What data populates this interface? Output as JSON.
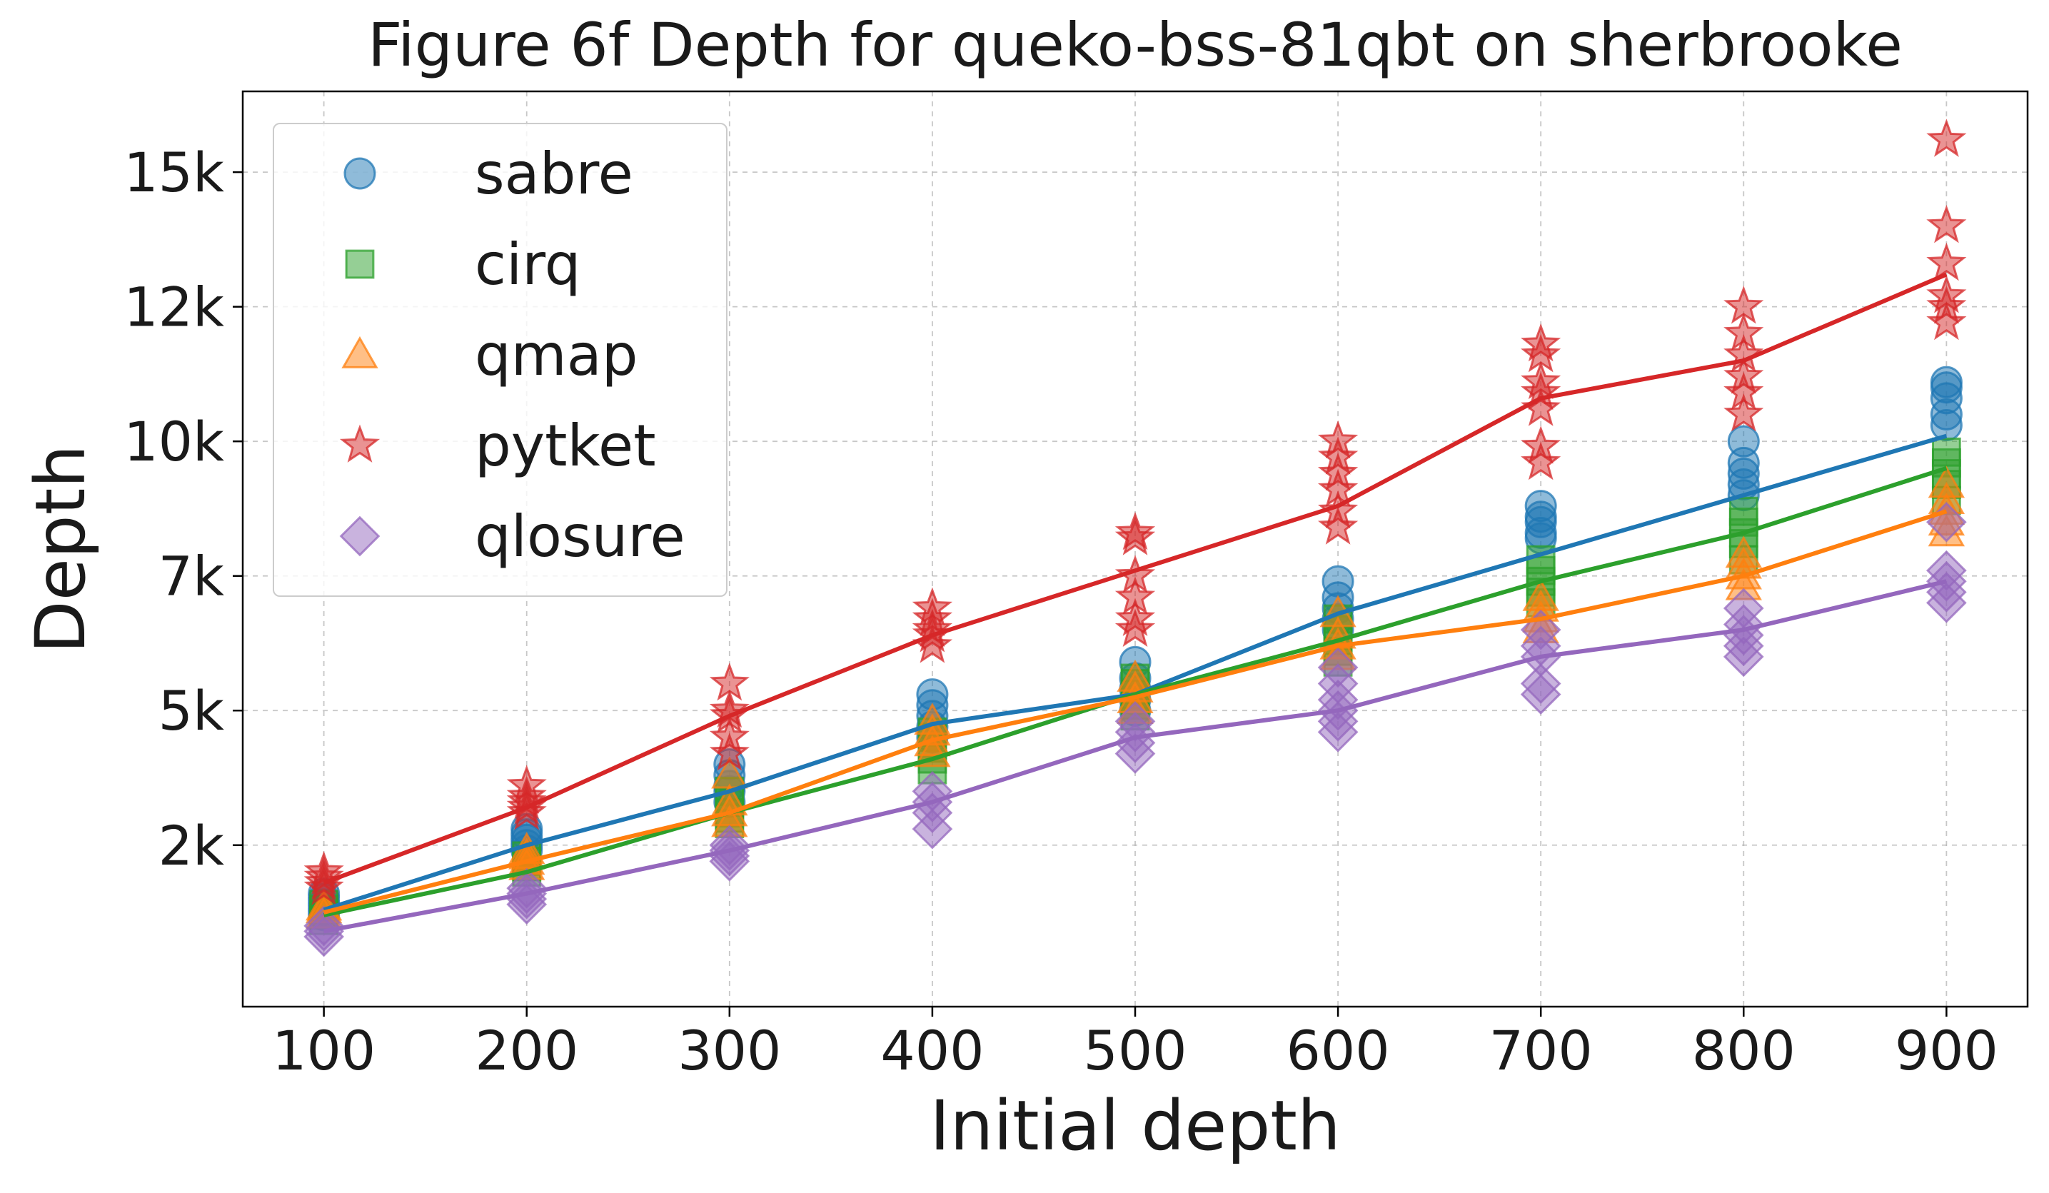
{
  "chart_data": {
    "type": "scatter",
    "title": "Figure 6f Depth for queko-bss-81qbt on sherbrooke",
    "xlabel": "Initial depth",
    "ylabel": "Depth",
    "xlim": [
      60,
      940
    ],
    "ylim": [
      -1000,
      16000
    ],
    "x_ticks": [
      100,
      200,
      300,
      400,
      500,
      600,
      700,
      800,
      900
    ],
    "x_tick_labels": [
      "100",
      "200",
      "300",
      "400",
      "500",
      "600",
      "700",
      "800",
      "900"
    ],
    "y_ticks": [
      2000,
      4500,
      7000,
      9500,
      12000,
      14500
    ],
    "y_tick_labels": [
      "2k",
      "5k",
      "7k",
      "10k",
      "12k",
      "15k"
    ],
    "grid": true,
    "legend_position": "top-left",
    "series": [
      {
        "name": "sabre",
        "color": "#1f77b4",
        "marker": "circle",
        "mean": [
          800,
          2000,
          3000,
          4250,
          4800,
          6300,
          7400,
          8500,
          9600
        ],
        "points": [
          [
            100,
            700
          ],
          [
            100,
            800
          ],
          [
            100,
            900
          ],
          [
            100,
            1000
          ],
          [
            100,
            1100
          ],
          [
            200,
            1900
          ],
          [
            200,
            2000
          ],
          [
            200,
            2100
          ],
          [
            200,
            2200
          ],
          [
            200,
            2300
          ],
          [
            300,
            2800
          ],
          [
            300,
            3000
          ],
          [
            300,
            3100
          ],
          [
            300,
            3300
          ],
          [
            300,
            3500
          ],
          [
            400,
            4000
          ],
          [
            400,
            4200
          ],
          [
            400,
            4400
          ],
          [
            400,
            4600
          ],
          [
            400,
            4800
          ],
          [
            500,
            4500
          ],
          [
            500,
            4700
          ],
          [
            500,
            4900
          ],
          [
            500,
            5100
          ],
          [
            500,
            5400
          ],
          [
            600,
            6000
          ],
          [
            600,
            6200
          ],
          [
            600,
            6400
          ],
          [
            600,
            6600
          ],
          [
            600,
            6900
          ],
          [
            700,
            7700
          ],
          [
            700,
            7800
          ],
          [
            700,
            8000
          ],
          [
            700,
            8100
          ],
          [
            700,
            8300
          ],
          [
            800,
            8500
          ],
          [
            800,
            8700
          ],
          [
            800,
            8900
          ],
          [
            800,
            9100
          ],
          [
            800,
            9500
          ],
          [
            900,
            9800
          ],
          [
            900,
            10000
          ],
          [
            900,
            10300
          ],
          [
            900,
            10500
          ],
          [
            900,
            10600
          ]
        ]
      },
      {
        "name": "cirq",
        "color": "#2ca02c",
        "marker": "square",
        "mean": [
          700,
          1500,
          2600,
          3600,
          4800,
          5800,
          6900,
          7800,
          9000
        ],
        "points": [
          [
            100,
            600
          ],
          [
            100,
            700
          ],
          [
            100,
            800
          ],
          [
            100,
            900
          ],
          [
            200,
            1500
          ],
          [
            200,
            1600
          ],
          [
            200,
            1700
          ],
          [
            200,
            1800
          ],
          [
            300,
            2400
          ],
          [
            300,
            2500
          ],
          [
            300,
            2600
          ],
          [
            300,
            2800
          ],
          [
            300,
            3000
          ],
          [
            400,
            3400
          ],
          [
            400,
            3600
          ],
          [
            400,
            3800
          ],
          [
            400,
            4000
          ],
          [
            400,
            4100
          ],
          [
            500,
            4400
          ],
          [
            500,
            4600
          ],
          [
            500,
            4800
          ],
          [
            500,
            5000
          ],
          [
            500,
            5100
          ],
          [
            600,
            5400
          ],
          [
            600,
            5600
          ],
          [
            600,
            5800
          ],
          [
            600,
            6000
          ],
          [
            600,
            6200
          ],
          [
            700,
            6500
          ],
          [
            700,
            6700
          ],
          [
            700,
            6900
          ],
          [
            700,
            7100
          ],
          [
            700,
            7300
          ],
          [
            800,
            7300
          ],
          [
            800,
            7600
          ],
          [
            800,
            7800
          ],
          [
            800,
            8000
          ],
          [
            800,
            8200
          ],
          [
            900,
            8400
          ],
          [
            900,
            8700
          ],
          [
            900,
            8900
          ],
          [
            900,
            9100
          ],
          [
            900,
            9300
          ]
        ]
      },
      {
        "name": "qmap",
        "color": "#ff7f0e",
        "marker": "triangle",
        "mean": [
          750,
          1700,
          2600,
          3950,
          4750,
          5700,
          6200,
          7000,
          8200
        ],
        "points": [
          [
            100,
            700
          ],
          [
            100,
            800
          ],
          [
            100,
            850
          ],
          [
            200,
            1600
          ],
          [
            200,
            1700
          ],
          [
            200,
            1800
          ],
          [
            200,
            1900
          ],
          [
            300,
            2400
          ],
          [
            300,
            2600
          ],
          [
            300,
            2800
          ],
          [
            300,
            3300
          ],
          [
            400,
            3700
          ],
          [
            400,
            3900
          ],
          [
            400,
            4100
          ],
          [
            400,
            4300
          ],
          [
            500,
            4500
          ],
          [
            500,
            4700
          ],
          [
            500,
            4900
          ],
          [
            500,
            5100
          ],
          [
            600,
            5500
          ],
          [
            600,
            5700
          ],
          [
            600,
            5900
          ],
          [
            600,
            6300
          ],
          [
            700,
            6000
          ],
          [
            700,
            6200
          ],
          [
            700,
            6400
          ],
          [
            700,
            6600
          ],
          [
            800,
            6800
          ],
          [
            800,
            7000
          ],
          [
            800,
            7200
          ],
          [
            800,
            7400
          ],
          [
            900,
            7800
          ],
          [
            900,
            8000
          ],
          [
            900,
            8200
          ],
          [
            900,
            8400
          ],
          [
            900,
            8700
          ]
        ]
      },
      {
        "name": "pytket",
        "color": "#d62728",
        "marker": "star",
        "mean": [
          1300,
          2700,
          4400,
          5900,
          7100,
          8300,
          10300,
          11000,
          12600
        ],
        "points": [
          [
            100,
            1200
          ],
          [
            100,
            1300
          ],
          [
            100,
            1400
          ],
          [
            100,
            1500
          ],
          [
            200,
            2600
          ],
          [
            200,
            2700
          ],
          [
            200,
            2800
          ],
          [
            200,
            2900
          ],
          [
            200,
            3100
          ],
          [
            300,
            3700
          ],
          [
            300,
            4000
          ],
          [
            300,
            4400
          ],
          [
            300,
            4500
          ],
          [
            300,
            5000
          ],
          [
            400,
            5700
          ],
          [
            400,
            5900
          ],
          [
            400,
            6000
          ],
          [
            400,
            6200
          ],
          [
            400,
            6400
          ],
          [
            500,
            6000
          ],
          [
            500,
            6200
          ],
          [
            500,
            6600
          ],
          [
            500,
            7000
          ],
          [
            500,
            7700
          ],
          [
            500,
            7800
          ],
          [
            600,
            7900
          ],
          [
            600,
            8200
          ],
          [
            600,
            8600
          ],
          [
            600,
            8900
          ],
          [
            600,
            9200
          ],
          [
            600,
            9500
          ],
          [
            700,
            9100
          ],
          [
            700,
            9400
          ],
          [
            700,
            10100
          ],
          [
            700,
            10400
          ],
          [
            700,
            10600
          ],
          [
            700,
            11100
          ],
          [
            700,
            11300
          ],
          [
            800,
            10000
          ],
          [
            800,
            10400
          ],
          [
            800,
            10700
          ],
          [
            800,
            11100
          ],
          [
            800,
            11500
          ],
          [
            800,
            12000
          ],
          [
            900,
            11700
          ],
          [
            900,
            12000
          ],
          [
            900,
            12200
          ],
          [
            900,
            12800
          ],
          [
            900,
            13500
          ],
          [
            900,
            15100
          ]
        ]
      },
      {
        "name": "qlosure",
        "color": "#9467bd",
        "marker": "diamond",
        "mean": [
          400,
          1100,
          1900,
          2800,
          4000,
          4500,
          5500,
          6000,
          6900
        ],
        "points": [
          [
            100,
            300
          ],
          [
            100,
            400
          ],
          [
            100,
            500
          ],
          [
            200,
            900
          ],
          [
            200,
            1000
          ],
          [
            200,
            1100
          ],
          [
            200,
            1200
          ],
          [
            300,
            1700
          ],
          [
            300,
            1800
          ],
          [
            300,
            1900
          ],
          [
            300,
            2000
          ],
          [
            400,
            2300
          ],
          [
            400,
            2600
          ],
          [
            400,
            2800
          ],
          [
            400,
            3000
          ],
          [
            500,
            3700
          ],
          [
            500,
            3900
          ],
          [
            500,
            4100
          ],
          [
            500,
            4300
          ],
          [
            600,
            4100
          ],
          [
            600,
            4300
          ],
          [
            600,
            4500
          ],
          [
            600,
            4700
          ],
          [
            600,
            5000
          ],
          [
            600,
            5300
          ],
          [
            700,
            4800
          ],
          [
            700,
            5000
          ],
          [
            700,
            5500
          ],
          [
            700,
            5700
          ],
          [
            700,
            6000
          ],
          [
            800,
            5500
          ],
          [
            800,
            5700
          ],
          [
            800,
            5900
          ],
          [
            800,
            6100
          ],
          [
            800,
            6400
          ],
          [
            900,
            6500
          ],
          [
            900,
            6700
          ],
          [
            900,
            6900
          ],
          [
            900,
            7100
          ],
          [
            900,
            8000
          ]
        ]
      }
    ]
  }
}
